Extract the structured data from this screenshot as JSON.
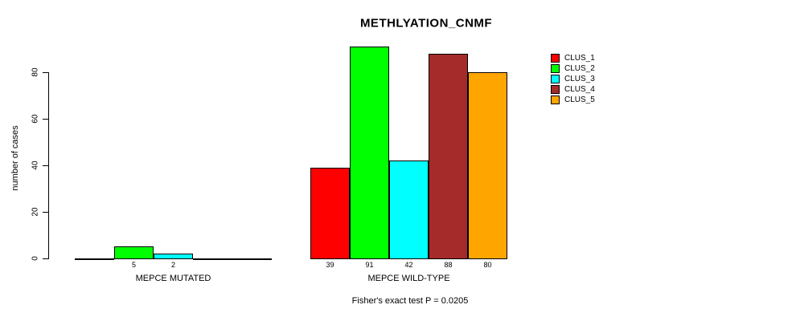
{
  "chart_data": {
    "type": "bar",
    "title": "METHLYATION_CNMF",
    "ylabel": "number of cases",
    "xlabel": "",
    "ylim": [
      0,
      80
    ],
    "yticks": [
      0,
      20,
      40,
      60,
      80
    ],
    "grid": false,
    "legend_position": "right",
    "background": "#ffffff",
    "axis_color": "#000000",
    "series": [
      {
        "name": "CLUS_1",
        "color": "#ff0000"
      },
      {
        "name": "CLUS_2",
        "color": "#00ff00"
      },
      {
        "name": "CLUS_3",
        "color": "#00ffff"
      },
      {
        "name": "CLUS_4",
        "color": "#a52a2a"
      },
      {
        "name": "CLUS_5",
        "color": "#ffa500"
      }
    ],
    "groups": [
      {
        "label": "MEPCE MUTATED",
        "values": [
          0,
          5,
          2,
          0,
          0
        ]
      },
      {
        "label": "MEPCE WILD-TYPE",
        "values": [
          39,
          91,
          42,
          88,
          80
        ]
      }
    ],
    "annotation": "Fisher's exact test P = 0.0205"
  }
}
